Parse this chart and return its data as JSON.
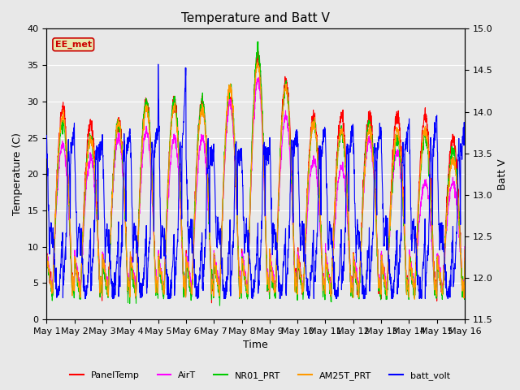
{
  "title": "Temperature and Batt V",
  "xlabel": "Time",
  "ylabel_left": "Temperature (C)",
  "ylabel_right": "Batt V",
  "ylim_left": [
    0,
    40
  ],
  "ylim_right": [
    11.5,
    15.0
  ],
  "xlim": [
    0,
    15
  ],
  "xtick_labels": [
    "May 1",
    "May 2",
    "May 3",
    "May 4",
    "May 5",
    "May 6",
    "May 7",
    "May 8",
    "May 9",
    "May 10",
    "May 11",
    "May 12",
    "May 13",
    "May 14",
    "May 15",
    "May 16"
  ],
  "yticks_left": [
    0,
    5,
    10,
    15,
    20,
    25,
    30,
    35,
    40
  ],
  "yticks_right": [
    11.5,
    12.0,
    12.5,
    13.0,
    13.5,
    14.0,
    14.5,
    15.0
  ],
  "legend_labels": [
    "PanelTemp",
    "AirT",
    "NR01_PRT",
    "AM25T_PRT",
    "batt_volt"
  ],
  "line_colors": [
    "#ff0000",
    "#ff00ff",
    "#00cc00",
    "#ff9900",
    "#0000ff"
  ],
  "station_label": "EE_met",
  "station_label_color": "#cc0000",
  "station_label_bg": "#e8e8b0",
  "plot_bg_color": "#e8e8e8",
  "fig_bg_color": "#e8e8e8",
  "grid_color": "#ffffff",
  "title_fontsize": 11,
  "label_fontsize": 9,
  "tick_fontsize": 8
}
